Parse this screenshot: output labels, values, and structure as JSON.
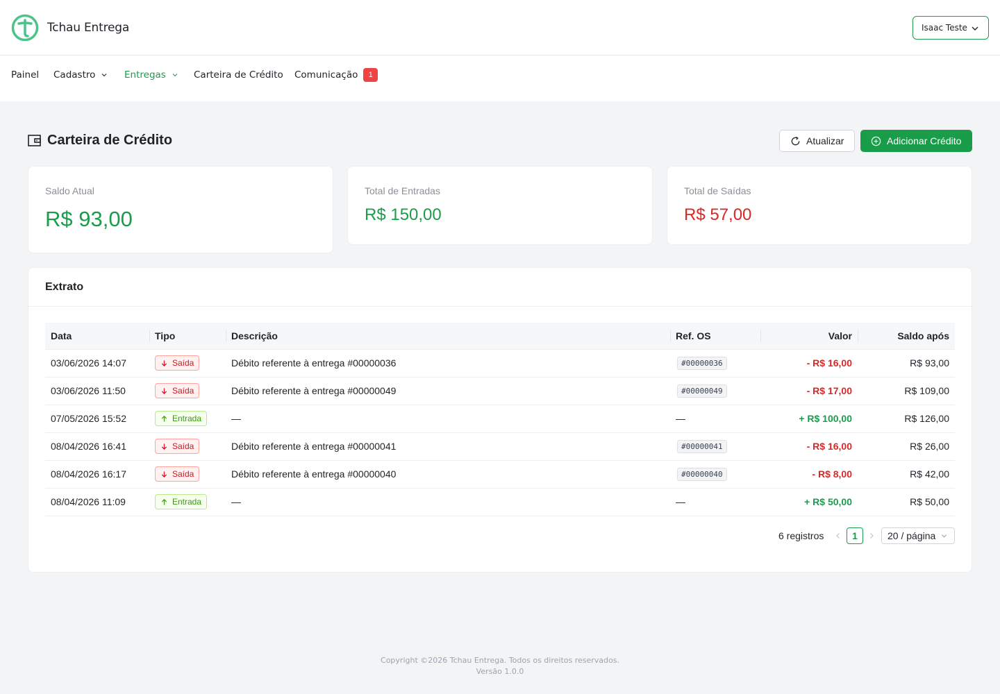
{
  "app": {
    "brand": "Tchau Entrega",
    "brand_color": "#1a9d4a"
  },
  "user": {
    "name": "Isaac Teste"
  },
  "nav": {
    "painel": "Painel",
    "cadastro": "Cadastro",
    "entregas": "Entregas",
    "carteira": "Carteira de Crédito",
    "comunicacao": "Comunicação",
    "comunicacao_badge": "1",
    "active": "entregas"
  },
  "page": {
    "title": "Carteira de Crédito",
    "refresh_label": "Atualizar",
    "add_label": "Adicionar Crédito"
  },
  "stats": {
    "saldo": {
      "label": "Saldo Atual",
      "value": "R$ 93,00"
    },
    "entradas": {
      "label": "Total de Entradas",
      "value": "R$ 150,00"
    },
    "saidas": {
      "label": "Total de Saídas",
      "value": "R$ 57,00"
    }
  },
  "extrato": {
    "title": "Extrato",
    "columns": {
      "data": "Data",
      "tipo": "Tipo",
      "descricao": "Descrição",
      "ref": "Ref. OS",
      "valor": "Valor",
      "saldo": "Saldo após"
    },
    "rows": [
      {
        "data": "03/06/2026 14:07",
        "tipo": "Saída",
        "descricao": "Débito referente à entrega #00000036",
        "ref": "#00000036",
        "valor": "- R$ 16,00",
        "saldo": "R$ 93,00"
      },
      {
        "data": "03/06/2026 11:50",
        "tipo": "Saída",
        "descricao": "Débito referente à entrega #00000049",
        "ref": "#00000049",
        "valor": "- R$ 17,00",
        "saldo": "R$ 109,00"
      },
      {
        "data": "07/05/2026 15:52",
        "tipo": "Entrada",
        "descricao": "—",
        "ref": "—",
        "valor": "+ R$ 100,00",
        "saldo": "R$ 126,00"
      },
      {
        "data": "08/04/2026 16:41",
        "tipo": "Saída",
        "descricao": "Débito referente à entrega #00000041",
        "ref": "#00000041",
        "valor": "- R$ 16,00",
        "saldo": "R$ 26,00"
      },
      {
        "data": "08/04/2026 16:17",
        "tipo": "Saída",
        "descricao": "Débito referente à entrega #00000040",
        "ref": "#00000040",
        "valor": "- R$ 8,00",
        "saldo": "R$ 42,00"
      },
      {
        "data": "08/04/2026 11:09",
        "tipo": "Entrada",
        "descricao": "—",
        "ref": "—",
        "valor": "+ R$ 50,00",
        "saldo": "R$ 50,00"
      }
    ],
    "total": "6 registros",
    "current_page": "1",
    "page_size": "20 / página"
  },
  "footer": {
    "copyright": "Copyright ©2026 Tchau Entrega. Todos os direitos reservados.",
    "version": "Versão 1.0.0"
  }
}
